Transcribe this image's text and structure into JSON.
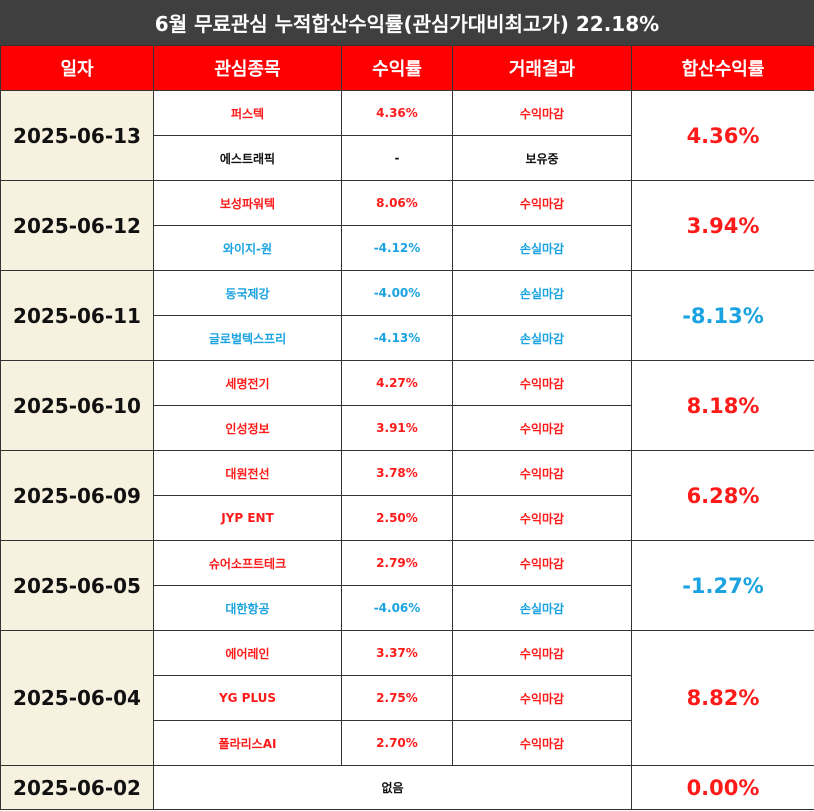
{
  "title": "6월 무료관심 누적합산수익률(관심가대비최고가) 22.18%",
  "headers": [
    "일자",
    "관심종목",
    "수익률",
    "거래결과",
    "합산수익률"
  ],
  "colors": {
    "header_bg": "#ff0000",
    "title_bg": "#3f3f3f",
    "date_bg": "#f7f2df",
    "profit": "#ff1a1a",
    "loss": "#1aa3e0",
    "neutral": "#111111"
  },
  "groups": [
    {
      "date": "2025-06-13",
      "total": "4.36%",
      "total_color": "red",
      "rows": [
        {
          "stock": "퍼스텍",
          "return": "4.36%",
          "result": "수익마감",
          "color": "red"
        },
        {
          "stock": "에스트래픽",
          "return": "-",
          "result": "보유중",
          "color": "black"
        }
      ]
    },
    {
      "date": "2025-06-12",
      "total": "3.94%",
      "total_color": "red",
      "rows": [
        {
          "stock": "보성파워텍",
          "return": "8.06%",
          "result": "수익마감",
          "color": "red"
        },
        {
          "stock": "와이지-원",
          "return": "-4.12%",
          "result": "손실마감",
          "color": "blue"
        }
      ]
    },
    {
      "date": "2025-06-11",
      "total": "-8.13%",
      "total_color": "blue",
      "rows": [
        {
          "stock": "동국제강",
          "return": "-4.00%",
          "result": "손실마감",
          "color": "blue"
        },
        {
          "stock": "글로벌텍스프리",
          "return": "-4.13%",
          "result": "손실마감",
          "color": "blue"
        }
      ]
    },
    {
      "date": "2025-06-10",
      "total": "8.18%",
      "total_color": "red",
      "rows": [
        {
          "stock": "세명전기",
          "return": "4.27%",
          "result": "수익마감",
          "color": "red"
        },
        {
          "stock": "인성정보",
          "return": "3.91%",
          "result": "수익마감",
          "color": "red"
        }
      ]
    },
    {
      "date": "2025-06-09",
      "total": "6.28%",
      "total_color": "red",
      "rows": [
        {
          "stock": "대원전선",
          "return": "3.78%",
          "result": "수익마감",
          "color": "red"
        },
        {
          "stock": "JYP ENT",
          "return": "2.50%",
          "result": "수익마감",
          "color": "red"
        }
      ]
    },
    {
      "date": "2025-06-05",
      "total": "-1.27%",
      "total_color": "blue",
      "rows": [
        {
          "stock": "슈어소프트테크",
          "return": "2.79%",
          "result": "수익마감",
          "color": "red"
        },
        {
          "stock": "대한항공",
          "return": "-4.06%",
          "result": "손실마감",
          "color": "blue"
        }
      ]
    },
    {
      "date": "2025-06-04",
      "total": "8.82%",
      "total_color": "red",
      "rows": [
        {
          "stock": "에어레인",
          "return": "3.37%",
          "result": "수익마감",
          "color": "red"
        },
        {
          "stock": "YG PLUS",
          "return": "2.75%",
          "result": "수익마감",
          "color": "red"
        },
        {
          "stock": "폴라리스AI",
          "return": "2.70%",
          "result": "수익마감",
          "color": "red"
        }
      ]
    },
    {
      "date": "2025-06-02",
      "total": "0.00%",
      "total_color": "red",
      "none_text": "없음",
      "rows": []
    }
  ]
}
